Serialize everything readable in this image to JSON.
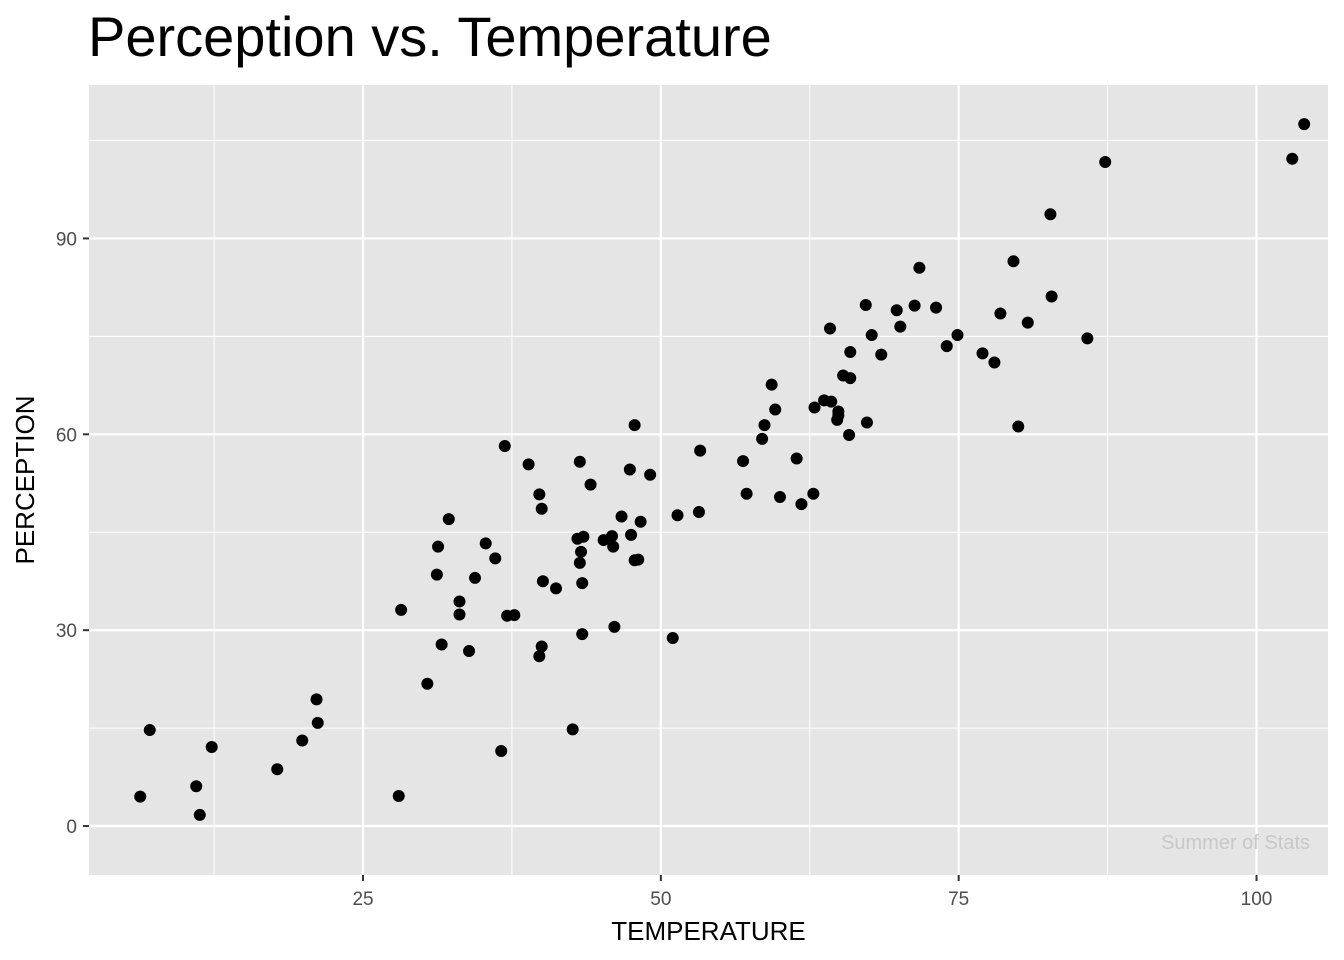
{
  "chart_data": {
    "type": "scatter",
    "title": "Perception vs. Temperature",
    "xlabel": "TEMPERATURE",
    "ylabel": "PERCEPTION",
    "xlim": [
      2,
      106
    ],
    "ylim": [
      -7.5,
      113.5
    ],
    "xticks": [
      25,
      50,
      75,
      100
    ],
    "yticks": [
      0,
      30,
      60,
      90
    ],
    "grid": true,
    "background": "#e5e5e5",
    "grid_color": "#ffffff",
    "point_color": "#000000",
    "watermark": "Summer of Stats",
    "x": [
      6.3,
      7.1,
      11.0,
      11.3,
      12.3,
      17.8,
      19.9,
      21.1,
      21.2,
      28.0,
      28.2,
      30.4,
      31.2,
      31.3,
      31.6,
      32.2,
      33.1,
      33.1,
      33.9,
      34.4,
      35.3,
      36.1,
      36.6,
      36.9,
      37.1,
      37.7,
      38.9,
      39.8,
      39.8,
      40.0,
      40.0,
      40.1,
      41.2,
      42.6,
      43.0,
      43.2,
      43.2,
      43.3,
      43.4,
      43.4,
      43.5,
      44.1,
      45.2,
      45.9,
      46.0,
      46.1,
      46.7,
      47.4,
      47.5,
      47.8,
      47.8,
      48.1,
      48.3,
      49.1,
      51.0,
      51.4,
      53.2,
      53.3,
      56.9,
      57.2,
      58.5,
      58.7,
      59.3,
      59.6,
      60.0,
      61.4,
      61.8,
      62.8,
      62.9,
      63.7,
      64.2,
      64.3,
      64.8,
      64.9,
      64.9,
      65.3,
      65.8,
      65.9,
      65.9,
      67.2,
      67.3,
      67.7,
      68.5,
      69.8,
      70.1,
      71.3,
      71.7,
      73.1,
      74.0,
      74.9,
      77.0,
      78.0,
      78.5,
      79.6,
      80.0,
      80.8,
      82.7,
      82.8,
      85.8,
      87.3,
      103.0,
      104.0
    ],
    "y": [
      4.5,
      14.7,
      6.1,
      1.7,
      12.1,
      8.7,
      13.1,
      19.4,
      15.8,
      4.6,
      33.1,
      21.8,
      38.5,
      42.8,
      27.8,
      47.0,
      32.4,
      34.4,
      26.8,
      38.0,
      43.3,
      41.0,
      11.5,
      58.2,
      32.2,
      32.3,
      55.4,
      26.0,
      50.8,
      27.5,
      48.6,
      37.5,
      36.4,
      14.8,
      44.0,
      40.3,
      55.8,
      42.0,
      37.2,
      29.4,
      44.3,
      52.3,
      43.8,
      44.4,
      42.8,
      30.5,
      47.4,
      54.6,
      44.6,
      40.7,
      61.4,
      40.8,
      46.6,
      53.8,
      28.8,
      47.6,
      48.1,
      57.5,
      55.9,
      50.9,
      59.3,
      61.4,
      67.6,
      63.8,
      50.4,
      56.3,
      49.3,
      50.9,
      64.1,
      65.2,
      76.2,
      65.0,
      62.2,
      63.5,
      62.9,
      69.0,
      59.9,
      72.6,
      68.6,
      79.8,
      61.8,
      75.2,
      72.2,
      79.0,
      76.5,
      79.7,
      85.5,
      79.4,
      73.5,
      75.2,
      72.4,
      71.0,
      78.5,
      86.5,
      61.2,
      77.1,
      93.7,
      81.1,
      74.7,
      101.7,
      102.2,
      107.5
    ]
  }
}
